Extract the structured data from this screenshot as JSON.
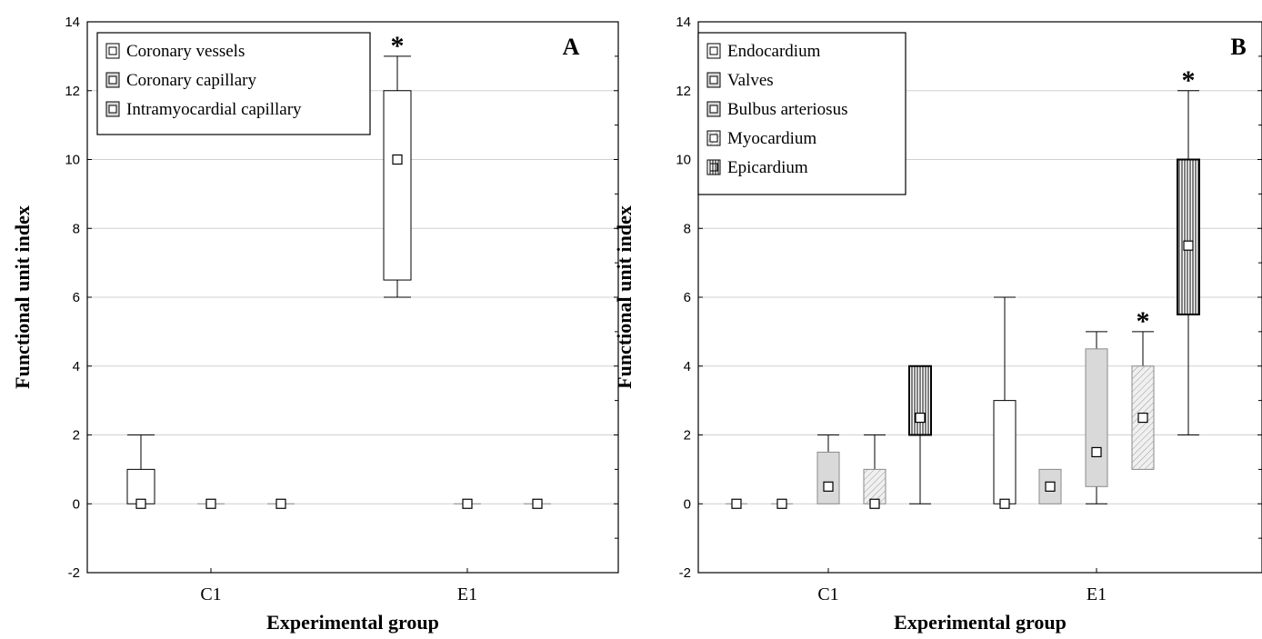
{
  "chart_data": [
    {
      "type": "box",
      "panel_label": "A",
      "xlabel": "Experimental group",
      "ylabel": "Functional unit index",
      "ylim": [
        -2,
        14
      ],
      "yticks": [
        "-2",
        "0",
        "2",
        "4",
        "6",
        "8",
        "10",
        "12",
        "14"
      ],
      "categories": [
        "C1",
        "E1"
      ],
      "grid": true,
      "legend_position": "top-left",
      "series": [
        {
          "name": "Coronary vessels",
          "fill": "#ffffff",
          "hatch": "none",
          "boxes": [
            {
              "group": "C1",
              "median": 0,
              "q1": 0,
              "q3": 1,
              "min": 0,
              "max": 2,
              "star": false
            },
            {
              "group": "E1",
              "median": 10,
              "q1": 6.5,
              "q3": 12,
              "min": 6,
              "max": 13,
              "star": true
            }
          ]
        },
        {
          "name": "Coronary capillary",
          "fill": "#d9d9d9",
          "hatch": "none",
          "boxes": [
            {
              "group": "C1",
              "median": 0,
              "q1": 0,
              "q3": 0,
              "min": 0,
              "max": 0,
              "star": false
            },
            {
              "group": "E1",
              "median": 0,
              "q1": 0,
              "q3": 0,
              "min": 0,
              "max": 0,
              "star": false
            }
          ]
        },
        {
          "name": "Intramyocardial capillary",
          "fill": "#d9d9d9",
          "hatch": "none",
          "boxes": [
            {
              "group": "C1",
              "median": 0,
              "q1": 0,
              "q3": 0,
              "min": 0,
              "max": 0,
              "star": false
            },
            {
              "group": "E1",
              "median": 0,
              "q1": 0,
              "q3": 0,
              "min": 0,
              "max": 0,
              "star": false
            }
          ]
        }
      ]
    },
    {
      "type": "box",
      "panel_label": "B",
      "xlabel": "Experimental group",
      "ylabel": "Functional unit index",
      "ylim": [
        -2,
        14
      ],
      "yticks": [
        "-2",
        "0",
        "2",
        "4",
        "6",
        "8",
        "10",
        "12",
        "14"
      ],
      "categories": [
        "C1",
        "E1"
      ],
      "grid": true,
      "legend_position": "top-left",
      "series": [
        {
          "name": "Endocardium",
          "fill": "#ffffff",
          "hatch": "none",
          "boxes": [
            {
              "group": "C1",
              "median": 0,
              "q1": 0,
              "q3": 0,
              "min": 0,
              "max": 0,
              "star": false
            },
            {
              "group": "E1",
              "median": 0,
              "q1": 0,
              "q3": 3,
              "min": 0,
              "max": 6,
              "star": false
            }
          ]
        },
        {
          "name": "Valves",
          "fill": "#d9d9d9",
          "hatch": "none",
          "boxes": [
            {
              "group": "C1",
              "median": 0,
              "q1": 0,
              "q3": 0,
              "min": 0,
              "max": 0,
              "star": false
            },
            {
              "group": "E1",
              "median": 0.5,
              "q1": 0,
              "q3": 1,
              "min": 0,
              "max": 1,
              "star": false
            }
          ]
        },
        {
          "name": "Bulbus arteriosus",
          "fill": "#d9d9d9",
          "hatch": "none",
          "boxes": [
            {
              "group": "C1",
              "median": 0.5,
              "q1": 0,
              "q3": 1.5,
              "min": 0,
              "max": 2,
              "star": false
            },
            {
              "group": "E1",
              "median": 1.5,
              "q1": 0.5,
              "q3": 4.5,
              "min": 0,
              "max": 5,
              "star": false
            }
          ]
        },
        {
          "name": "Myocardium",
          "fill": "#ececec",
          "hatch": "diagonal",
          "boxes": [
            {
              "group": "C1",
              "median": 0,
              "q1": 0,
              "q3": 1,
              "min": 0,
              "max": 2,
              "star": false
            },
            {
              "group": "E1",
              "median": 2.5,
              "q1": 1,
              "q3": 4,
              "min": 1,
              "max": 5,
              "star": true
            }
          ]
        },
        {
          "name": "Epicardium",
          "fill": "#ffffff",
          "hatch": "vertical",
          "boxes": [
            {
              "group": "C1",
              "median": 2.5,
              "q1": 2,
              "q3": 4,
              "min": 0,
              "max": 4,
              "star": false
            },
            {
              "group": "E1",
              "median": 7.5,
              "q1": 5.5,
              "q3": 10,
              "min": 2,
              "max": 12,
              "star": true
            }
          ]
        }
      ]
    }
  ]
}
